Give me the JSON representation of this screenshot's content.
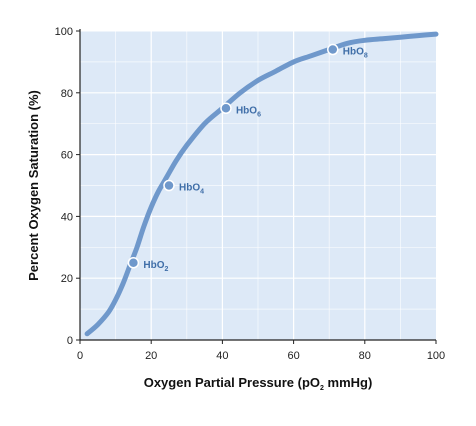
{
  "chart_data": {
    "type": "line",
    "title": "",
    "xlabel_parts": {
      "main": "Oxygen Partial Pressure (pO",
      "sub": "2",
      "tail": " mmHg)"
    },
    "ylabel": "Percent Oxygen Saturation (%)",
    "xlim": [
      0,
      100
    ],
    "ylim": [
      0,
      100
    ],
    "xticks": [
      0,
      20,
      40,
      60,
      80,
      100
    ],
    "yticks": [
      0,
      20,
      40,
      60,
      80,
      100
    ],
    "grid": true,
    "series": [
      {
        "x": [
          2,
          5,
          8,
          10,
          12,
          14,
          16,
          18,
          20,
          22,
          24,
          27,
          30,
          35,
          40,
          45,
          50,
          55,
          60,
          65,
          70,
          75,
          80,
          85,
          90,
          95,
          100
        ],
        "y": [
          2,
          5,
          9,
          13,
          18,
          24,
          30,
          37,
          43,
          48,
          52,
          58,
          63,
          70,
          75,
          80,
          84,
          87,
          90,
          92,
          94,
          96,
          97,
          97.5,
          98,
          98.5,
          99
        ]
      }
    ],
    "points": [
      {
        "x": 15,
        "y": 25,
        "label_main": "HbO",
        "label_sub": "2"
      },
      {
        "x": 25,
        "y": 50,
        "label_main": "HbO",
        "label_sub": "4"
      },
      {
        "x": 41,
        "y": 75,
        "label_main": "HbO",
        "label_sub": "6"
      },
      {
        "x": 71,
        "y": 94,
        "label_main": "HbO",
        "label_sub": "8"
      }
    ],
    "colors": {
      "plot_background": "#dde9f7",
      "grid": "#ffffff",
      "curve": "#6f98cb",
      "point_fill": "#6f98cb",
      "point_stroke": "#ffffff",
      "label": "#3f6ea8",
      "axis": "#222222"
    }
  }
}
